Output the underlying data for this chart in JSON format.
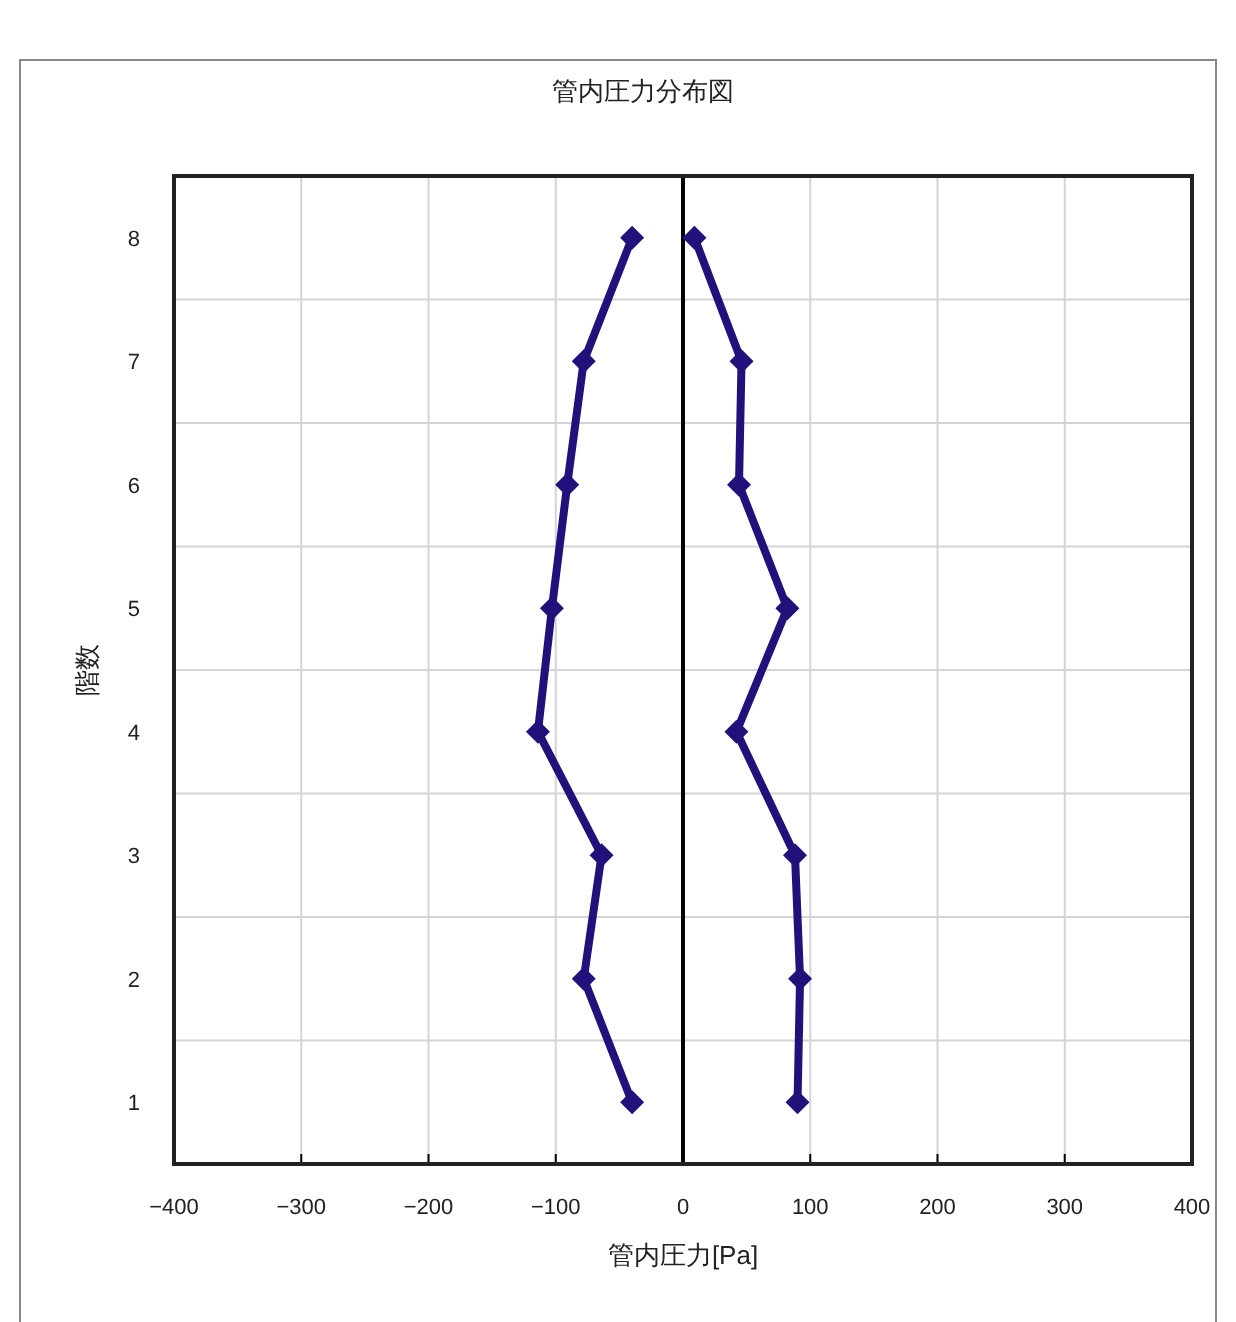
{
  "chart_data": {
    "type": "line",
    "title": "管内圧力分布図",
    "xlabel": "管内圧力[Pa]",
    "ylabel": "階数",
    "xlim": [
      -400,
      400
    ],
    "xticks": [
      -400,
      -300,
      -200,
      -100,
      0,
      100,
      200,
      300,
      400
    ],
    "ylim": [
      0.5,
      8.5
    ],
    "yticks": [
      1,
      2,
      3,
      4,
      5,
      6,
      7,
      8,
      {
        "value": 1.5,
        "label": null
      },
      {
        "value": 2.5,
        "label": null
      },
      {
        "value": 3.5,
        "label": null
      },
      {
        "value": 4.5,
        "label": null
      },
      {
        "value": 5.5,
        "label": null
      },
      {
        "value": 6.5,
        "label": null
      },
      {
        "value": 7.5,
        "label": null
      }
    ],
    "grid": true,
    "marker": "diamond",
    "line_style": "solid",
    "ref_lines": [
      {
        "axis": "x",
        "value": 0,
        "color": "#000000"
      }
    ],
    "series": [
      {
        "color": "#24107a",
        "x": [
          -40,
          -78,
          -91,
          -103,
          -114,
          -64,
          -78,
          -40
        ],
        "values": [
          8,
          7,
          6,
          5,
          4,
          3,
          2,
          1
        ]
      },
      {
        "color": "#24107a",
        "x": [
          9,
          46,
          44,
          82,
          42,
          88,
          92,
          90
        ],
        "values": [
          8,
          7,
          6,
          5,
          4,
          3,
          2,
          1
        ]
      }
    ]
  }
}
